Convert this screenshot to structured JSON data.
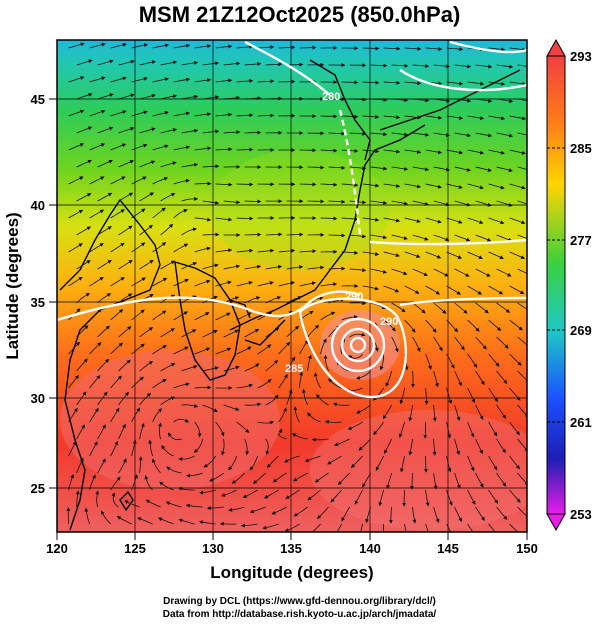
{
  "title": "MSM 21Z12Oct2025 (850.0hPa)",
  "x_axis": {
    "label": "Longitude (degrees)",
    "ticks": [
      "120",
      "125",
      "130",
      "135",
      "140",
      "145",
      "150"
    ]
  },
  "y_axis": {
    "label": "Latitude  (degrees)",
    "ticks": [
      "25",
      "30",
      "35",
      "40",
      "45"
    ]
  },
  "colorbar": {
    "ticks": [
      "293",
      "285",
      "277",
      "269",
      "261",
      "253"
    ],
    "colors": [
      "#f04040",
      "#ff7a1a",
      "#ffd400",
      "#3cd13c",
      "#1ec8c8",
      "#1a70ff",
      "#1e1eb4",
      "#e61ee6"
    ]
  },
  "contour_labels": [
    "280",
    "290",
    "285",
    "290"
  ],
  "credits": {
    "line1": "Drawing by DCL (https://www.gfd-dennou.org/library/dcl/)",
    "line2": "Data from http://database.rish.kyoto-u.ac.jp/arch/jmadata/"
  }
}
